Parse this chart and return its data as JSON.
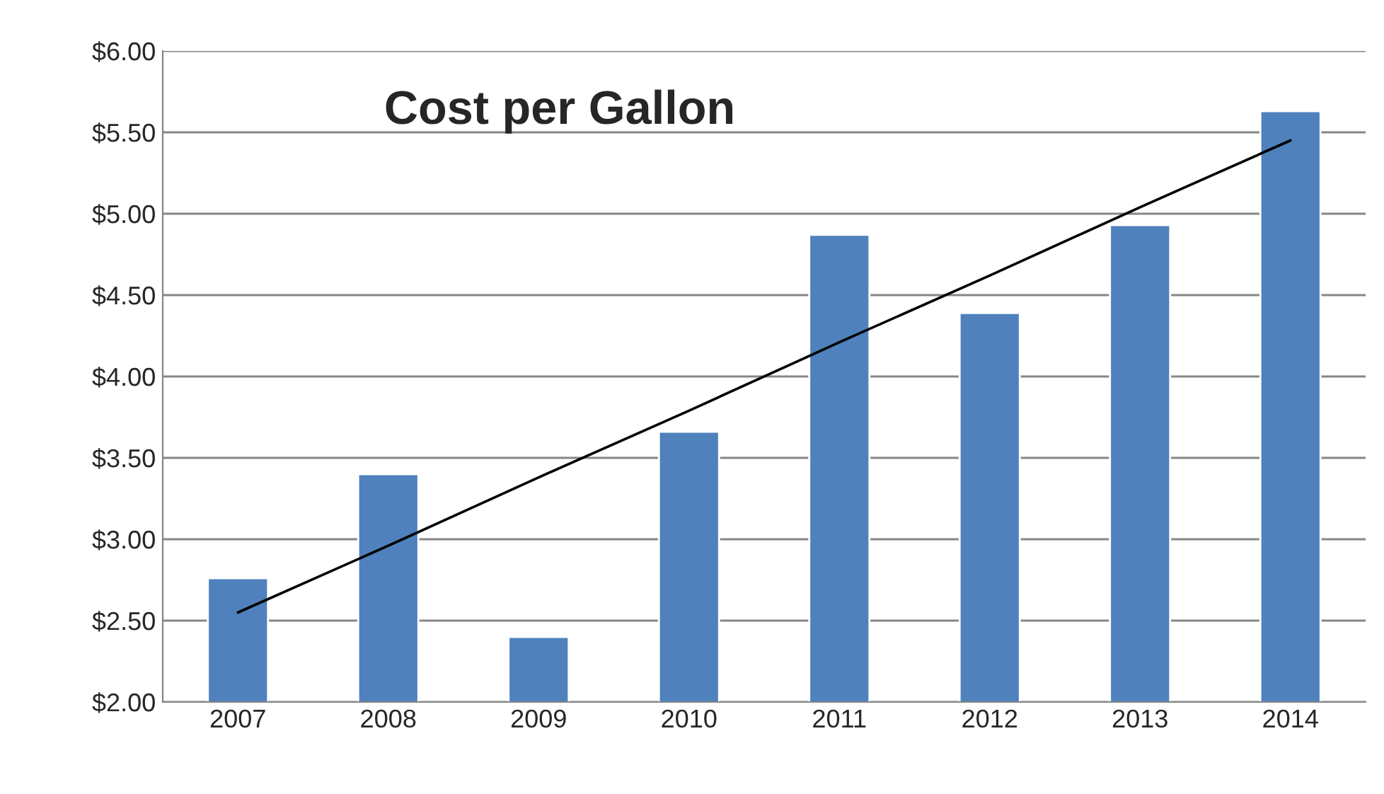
{
  "chart_data": {
    "type": "bar",
    "title": "Cost per Gallon",
    "categories": [
      "2007",
      "2008",
      "2009",
      "2010",
      "2011",
      "2012",
      "2013",
      "2014"
    ],
    "series": [
      {
        "color": "#4f81bd",
        "values": [
          2.76,
          3.4,
          2.4,
          3.66,
          4.87,
          4.39,
          4.93,
          5.63
        ]
      },
      {
        "type": "line",
        "color": "#000000",
        "values": [
          2.55,
          2.96,
          3.38,
          3.79,
          4.21,
          4.62,
          5.04,
          5.45
        ]
      }
    ],
    "ylim": [
      2,
      6
    ],
    "yticks": [
      {
        "value": 2,
        "label": "$2.00"
      },
      {
        "value": 2.5,
        "label": "$2.50"
      },
      {
        "value": 3,
        "label": "$3.00"
      },
      {
        "value": 3.5,
        "label": "$3.50"
      },
      {
        "value": 4,
        "label": "$4.00"
      },
      {
        "value": 4.5,
        "label": "$4.50"
      },
      {
        "value": 5,
        "label": "$5.00"
      },
      {
        "value": 5.5,
        "label": "$5.50"
      },
      {
        "value": 6,
        "label": "$6.00"
      }
    ],
    "grid": "y",
    "legend": false
  }
}
